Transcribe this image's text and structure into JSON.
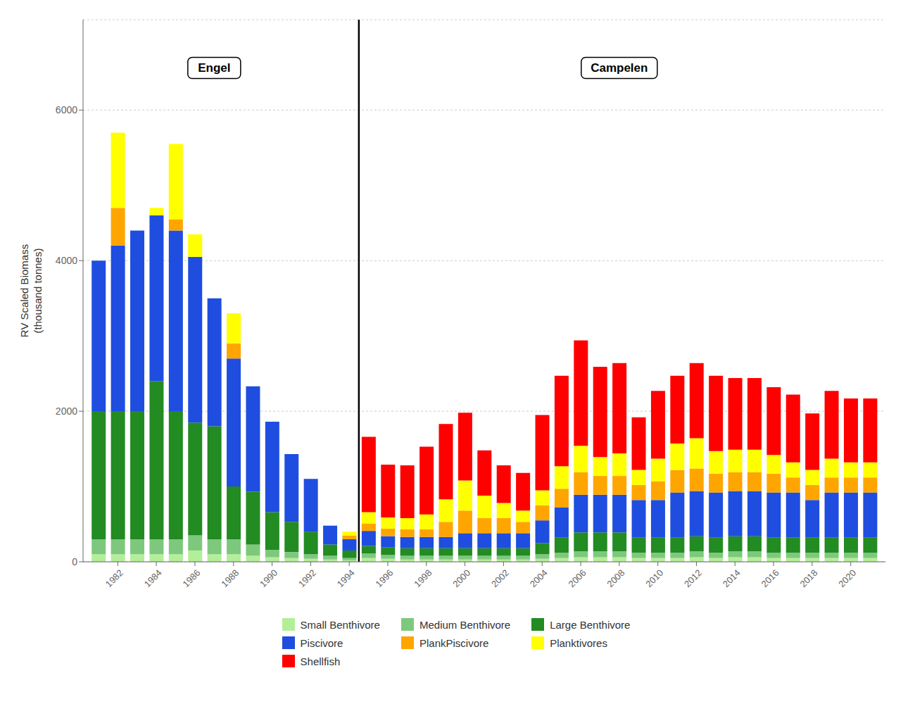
{
  "chart_data": {
    "type": "bar",
    "stacked": true,
    "x": [
      1981,
      1982,
      1983,
      1984,
      1985,
      1986,
      1987,
      1988,
      1989,
      1990,
      1991,
      1992,
      1993,
      1994,
      1995,
      1996,
      1997,
      1998,
      1999,
      2000,
      2001,
      2002,
      2003,
      2004,
      2005,
      2006,
      2007,
      2008,
      2009,
      2010,
      2011,
      2012,
      2013,
      2014,
      2015,
      2016,
      2017,
      2018,
      2019,
      2020,
      2021
    ],
    "xlim": [
      1980.2,
      2021.8
    ],
    "xticks": [
      1982,
      1984,
      1986,
      1988,
      1990,
      1992,
      1994,
      1996,
      1998,
      2000,
      2002,
      2004,
      2006,
      2008,
      2010,
      2012,
      2014,
      2016,
      2018,
      2020
    ],
    "ylabel": "RV Scaled Biomass\n(thousand tonnes)",
    "ylim": [
      0,
      7200
    ],
    "yticks": [
      0,
      2000,
      4000,
      6000
    ],
    "grid": true,
    "legend": "bottom",
    "series": [
      {
        "name": "Small Benthivore",
        "color": "#b3ee99",
        "values": [
          100,
          100,
          100,
          100,
          100,
          150,
          100,
          100,
          80,
          60,
          50,
          40,
          30,
          20,
          50,
          40,
          30,
          30,
          30,
          30,
          30,
          30,
          30,
          40,
          50,
          60,
          60,
          60,
          50,
          50,
          50,
          60,
          50,
          60,
          60,
          50,
          50,
          50,
          50,
          50,
          50
        ]
      },
      {
        "name": "Medium Benthivore",
        "color": "#7ec87e",
        "values": [
          200,
          200,
          200,
          200,
          200,
          200,
          200,
          200,
          150,
          100,
          80,
          60,
          50,
          30,
          60,
          50,
          50,
          50,
          50,
          50,
          50,
          50,
          50,
          60,
          70,
          80,
          80,
          80,
          70,
          70,
          70,
          80,
          70,
          80,
          80,
          70,
          70,
          70,
          70,
          70,
          70
        ]
      },
      {
        "name": "Large Benthivore",
        "color": "#228B22",
        "values": [
          1700,
          1700,
          1700,
          2100,
          1700,
          1500,
          1500,
          700,
          700,
          500,
          400,
          300,
          150,
          100,
          100,
          100,
          100,
          100,
          100,
          100,
          100,
          100,
          100,
          150,
          200,
          250,
          250,
          250,
          200,
          200,
          200,
          200,
          200,
          200,
          200,
          200,
          200,
          200,
          200,
          200,
          200
        ]
      },
      {
        "name": "Piscivore",
        "color": "#1f4de0",
        "values": [
          2000,
          2200,
          2400,
          2200,
          2400,
          2200,
          1700,
          1700,
          1400,
          1200,
          900,
          700,
          250,
          150,
          200,
          150,
          150,
          150,
          150,
          200,
          200,
          200,
          200,
          300,
          400,
          500,
          500,
          500,
          500,
          500,
          600,
          600,
          600,
          600,
          600,
          600,
          600,
          500,
          600,
          600,
          600
        ]
      },
      {
        "name": "PlankPiscivore",
        "color": "#FFA500",
        "values": [
          0,
          500,
          0,
          0,
          150,
          0,
          0,
          200,
          0,
          0,
          0,
          0,
          0,
          50,
          100,
          100,
          100,
          100,
          200,
          300,
          200,
          200,
          150,
          200,
          250,
          300,
          250,
          250,
          200,
          250,
          300,
          300,
          250,
          250,
          250,
          250,
          200,
          200,
          200,
          200,
          200
        ]
      },
      {
        "name": "Planktivores",
        "color": "#FFFF00",
        "values": [
          0,
          1000,
          0,
          100,
          1000,
          300,
          0,
          400,
          0,
          0,
          0,
          0,
          0,
          50,
          150,
          150,
          150,
          200,
          300,
          400,
          300,
          200,
          150,
          200,
          300,
          350,
          250,
          300,
          200,
          300,
          350,
          400,
          300,
          300,
          300,
          250,
          200,
          200,
          250,
          200,
          200
        ]
      },
      {
        "name": "Shellfish",
        "color": "#FF0000",
        "values": [
          0,
          0,
          0,
          0,
          0,
          0,
          0,
          0,
          0,
          0,
          0,
          0,
          0,
          0,
          1000,
          700,
          700,
          900,
          1000,
          900,
          600,
          500,
          500,
          1000,
          1200,
          1400,
          1200,
          1200,
          700,
          900,
          900,
          1000,
          1000,
          950,
          950,
          900,
          900,
          750,
          900,
          850,
          850
        ]
      }
    ],
    "vlines": [
      {
        "x": 1994.5,
        "color": "#000000"
      }
    ],
    "annotations": [
      {
        "text": "Engel",
        "x": 1987,
        "y": 6700
      },
      {
        "text": "Campelen",
        "x": 2008,
        "y": 6700
      }
    ]
  }
}
